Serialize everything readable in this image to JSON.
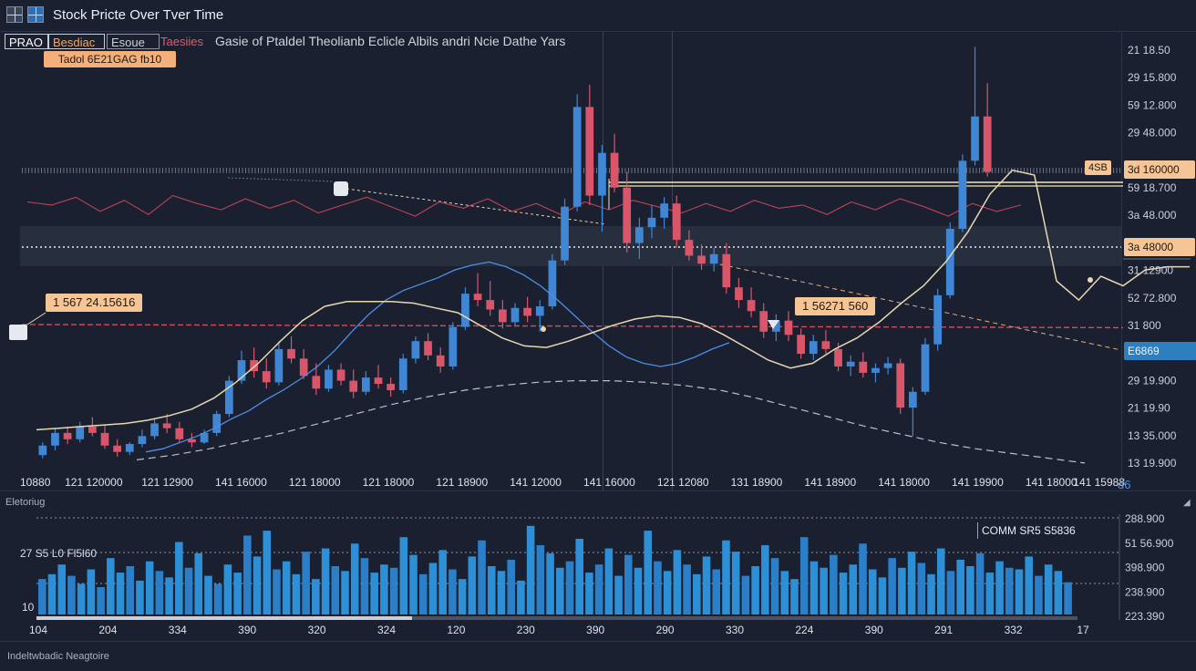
{
  "window": {
    "title": "Stock Pricte Over Tver Time",
    "icons": [
      "chart-grid-icon",
      "layout-icon"
    ]
  },
  "tabs": [
    {
      "label": "PRAO"
    },
    {
      "label": "Besdiac"
    },
    {
      "label": "Esoue"
    },
    {
      "label": "Taesiies"
    }
  ],
  "subtitle": "Gasie of Ptaldel Theolianb Eclicle Albils andri Ncie Dathe Yars",
  "price_badge": "Tadol 6E21GAG fb10",
  "annotations": {
    "left": "1 567 24.15616",
    "mid": "1 56271 560",
    "marker_left": "☐",
    "marker_mid": "②"
  },
  "price_tags": {
    "upper_left": "4SB",
    "upper": "3d 160000",
    "middle": "3a 48000",
    "current": "E6869",
    "bottom_right": "d6"
  },
  "colors": {
    "background": "#1a2030",
    "up_candle": "#3f86d4",
    "down_candle": "#d9566a",
    "ma_light": "#e8d8b0",
    "ma_blue": "#4d8fe8",
    "red_line": "#d84a5a",
    "volume": "#2d8fd6",
    "tag_orange": "#f6c596",
    "tag_blue": "#2d7fc0"
  },
  "volume_panel": {
    "caption": "Eletoriug",
    "label_top": "27  S5 L0 Fl5l60",
    "label_bottom": "10",
    "box_label": "COMM SR5 S5836",
    "x_ticks": [
      "104",
      "204",
      "334",
      "390",
      "320",
      "324",
      "120",
      "230",
      "390",
      "290",
      "330",
      "224",
      "390",
      "291",
      "332",
      "17"
    ],
    "y_ticks": [
      "288.900",
      "51 56.900",
      "398.900",
      "238.900",
      "223.390"
    ]
  },
  "footer": {
    "text": "Indeltwbadic Neagtoire"
  },
  "chart_data": {
    "type": "candlestick",
    "title": "Stock Pricte Over Tver Time",
    "x_tick_labels": [
      "10880",
      "121 120000",
      "121 12900",
      "141 16000",
      "121 18000",
      "121 18000",
      "121 18900",
      "141 12000",
      "141 16000",
      "121 12080",
      "131 18900",
      "141 18900",
      "141 18000",
      "141 19900",
      "141 18000",
      "141 15988"
    ],
    "y_tick_labels": [
      "21 18.50",
      "29 15.800",
      "59 12.800",
      "29 48.000",
      "3d 160000",
      "59 18.700",
      "3a 48.000",
      "3a 48000",
      "31 12900",
      "52 72.800",
      "31 800",
      "E6869",
      "29 19.900",
      "21 19.90",
      "13 35.000",
      "13 19.900"
    ],
    "y_range": [
      14.0,
      42.0
    ],
    "candles": [
      [
        15.2,
        16.0,
        15.0,
        15.8
      ],
      [
        15.8,
        16.9,
        15.5,
        16.6
      ],
      [
        16.6,
        17.0,
        15.9,
        16.2
      ],
      [
        16.2,
        17.3,
        16.0,
        17.0
      ],
      [
        17.0,
        17.6,
        16.4,
        16.6
      ],
      [
        16.6,
        17.1,
        15.6,
        15.8
      ],
      [
        15.8,
        16.2,
        15.1,
        15.4
      ],
      [
        15.4,
        16.0,
        15.2,
        15.9
      ],
      [
        15.9,
        16.8,
        15.7,
        16.4
      ],
      [
        16.4,
        17.5,
        16.2,
        17.2
      ],
      [
        17.2,
        17.8,
        16.6,
        16.9
      ],
      [
        16.9,
        17.3,
        16.0,
        16.2
      ],
      [
        16.2,
        16.6,
        15.7,
        16.0
      ],
      [
        16.0,
        16.8,
        15.9,
        16.6
      ],
      [
        16.6,
        18.0,
        16.4,
        17.8
      ],
      [
        17.8,
        20.2,
        17.6,
        19.9
      ],
      [
        19.9,
        21.8,
        19.7,
        21.2
      ],
      [
        21.2,
        22.0,
        20.1,
        20.5
      ],
      [
        20.5,
        21.3,
        19.4,
        19.8
      ],
      [
        19.8,
        22.4,
        19.6,
        21.9
      ],
      [
        21.9,
        22.7,
        21.0,
        21.3
      ],
      [
        21.3,
        21.9,
        20.0,
        20.2
      ],
      [
        20.2,
        21.0,
        19.0,
        19.4
      ],
      [
        19.4,
        20.9,
        19.2,
        20.6
      ],
      [
        20.6,
        21.0,
        19.6,
        19.9
      ],
      [
        19.9,
        20.6,
        18.8,
        19.2
      ],
      [
        19.2,
        20.5,
        19.0,
        20.1
      ],
      [
        20.1,
        20.9,
        19.4,
        19.7
      ],
      [
        19.7,
        20.1,
        18.9,
        19.3
      ],
      [
        19.3,
        21.6,
        19.1,
        21.3
      ],
      [
        21.3,
        22.7,
        21.0,
        22.4
      ],
      [
        22.4,
        22.9,
        21.2,
        21.5
      ],
      [
        21.5,
        22.0,
        20.4,
        20.8
      ],
      [
        20.8,
        23.6,
        20.6,
        23.3
      ],
      [
        23.3,
        25.8,
        23.1,
        25.4
      ],
      [
        25.4,
        26.7,
        24.6,
        25.0
      ],
      [
        25.0,
        26.2,
        24.0,
        24.4
      ],
      [
        24.4,
        25.0,
        23.2,
        23.6
      ],
      [
        23.6,
        24.8,
        23.4,
        24.5
      ],
      [
        24.5,
        25.2,
        23.6,
        24.0
      ],
      [
        24.0,
        25.0,
        23.0,
        24.6
      ],
      [
        24.6,
        27.9,
        24.4,
        27.5
      ],
      [
        27.5,
        31.4,
        27.2,
        30.9
      ],
      [
        30.9,
        38.0,
        30.6,
        37.2
      ],
      [
        37.2,
        38.6,
        31.0,
        31.6
      ],
      [
        31.6,
        34.8,
        29.3,
        34.3
      ],
      [
        34.3,
        35.5,
        31.8,
        32.1
      ],
      [
        32.1,
        33.1,
        28.0,
        28.6
      ],
      [
        28.6,
        30.2,
        27.6,
        29.6
      ],
      [
        29.6,
        31.0,
        28.9,
        30.2
      ],
      [
        30.2,
        31.5,
        29.5,
        31.1
      ],
      [
        31.1,
        31.6,
        28.3,
        28.8
      ],
      [
        28.8,
        29.4,
        27.5,
        27.8
      ],
      [
        27.8,
        28.5,
        26.9,
        27.3
      ],
      [
        27.3,
        28.3,
        26.8,
        27.9
      ],
      [
        27.9,
        28.6,
        25.4,
        25.8
      ],
      [
        25.8,
        26.4,
        24.5,
        25.0
      ],
      [
        25.0,
        25.8,
        23.9,
        24.3
      ],
      [
        24.3,
        24.8,
        22.6,
        23.0
      ],
      [
        23.0,
        24.1,
        22.4,
        23.7
      ],
      [
        23.7,
        24.3,
        22.4,
        22.8
      ],
      [
        22.8,
        23.2,
        21.3,
        21.6
      ],
      [
        21.6,
        22.8,
        21.2,
        22.4
      ],
      [
        22.4,
        23.1,
        21.6,
        21.9
      ],
      [
        21.9,
        22.3,
        20.5,
        20.8
      ],
      [
        20.8,
        21.5,
        20.2,
        21.1
      ],
      [
        21.1,
        21.7,
        20.1,
        20.4
      ],
      [
        20.4,
        21.0,
        19.8,
        20.7
      ],
      [
        20.7,
        21.4,
        20.3,
        21.0
      ],
      [
        21.0,
        21.3,
        17.8,
        18.2
      ],
      [
        18.2,
        19.5,
        16.4,
        19.2
      ],
      [
        19.2,
        22.6,
        19.0,
        22.2
      ],
      [
        22.2,
        25.7,
        21.8,
        25.3
      ],
      [
        25.3,
        29.9,
        25.1,
        29.5
      ],
      [
        29.5,
        34.2,
        29.3,
        33.8
      ],
      [
        33.8,
        41.0,
        33.5,
        36.6
      ],
      [
        36.6,
        38.7,
        32.8,
        33.1
      ]
    ],
    "moving_average_light": [
      16.8,
      16.9,
      17.0,
      17.1,
      17.2,
      17.4,
      17.7,
      18.1,
      18.8,
      19.8,
      21.0,
      22.4,
      23.7,
      24.6,
      24.9,
      24.9,
      24.9,
      24.8,
      24.5,
      24.2,
      23.4,
      22.6,
      22.1,
      22.0,
      22.4,
      22.9,
      23.4,
      23.8,
      24.0,
      23.9,
      23.5,
      22.8,
      22.0,
      21.2,
      20.7,
      21.0,
      21.9,
      22.6,
      23.6,
      24.8,
      25.9,
      27.4,
      29.3,
      31.7,
      33.2,
      32.9,
      26.2,
      25.0,
      26.5,
      25.9,
      26.9,
      27.1,
      27.1
    ],
    "moving_average_blue": [
      15.4,
      15.6,
      16.0,
      16.4,
      16.9,
      17.5,
      18.0,
      18.7,
      19.3,
      20.0,
      20.8,
      21.8,
      23.0,
      24.1,
      25.0,
      25.6,
      26.0,
      26.4,
      26.9,
      27.2,
      27.4,
      27.1,
      26.6,
      25.9,
      25.0,
      24.0,
      23.0,
      22.1,
      21.4,
      21.0,
      20.8,
      21.0,
      21.4,
      21.9,
      22.3
    ],
    "moving_average_dashed": [
      14.9,
      15.2,
      15.6,
      16.1,
      16.6,
      17.2,
      17.8,
      18.4,
      18.9,
      19.3,
      19.6,
      19.8,
      19.9,
      19.9,
      19.8,
      19.6,
      19.3,
      18.8,
      18.2,
      17.6,
      17.0,
      16.5,
      16.0,
      15.6,
      15.3,
      15.0,
      14.7
    ],
    "reference_line_red": {
      "start": 22.3,
      "end": 22.1
    },
    "oscillator_line": [
      31.2,
      31.0,
      31.5,
      30.6,
      31.3,
      30.4,
      31.6,
      31.1,
      30.7,
      31.4,
      30.8,
      31.3,
      30.5,
      31.0,
      31.5,
      30.9,
      30.3,
      31.2,
      30.8,
      31.4,
      30.6,
      31.1,
      30.4,
      31.2,
      30.7,
      31.3,
      30.9,
      30.5,
      31.1,
      30.6,
      31.3,
      30.8,
      31.0,
      30.4,
      31.2,
      30.7,
      31.4,
      30.9,
      30.3,
      31.1,
      30.6,
      31.0
    ],
    "volume": [
      22,
      25,
      31,
      24,
      19,
      28,
      17,
      35,
      26,
      30,
      21,
      33,
      27,
      23,
      45,
      29,
      38,
      24,
      19,
      31,
      26,
      49,
      36,
      52,
      28,
      33,
      25,
      39,
      22,
      41,
      30,
      27,
      44,
      35,
      26,
      31,
      29,
      48,
      37,
      25,
      32,
      40,
      28,
      22,
      36,
      46,
      30,
      27,
      34,
      21,
      55,
      43,
      38,
      29,
      33,
      47,
      26,
      31,
      41,
      24,
      37,
      29,
      52,
      33,
      27,
      40,
      31,
      25,
      36,
      28,
      46,
      39,
      24,
      30,
      43,
      35,
      27,
      22,
      48,
      33,
      29,
      37,
      26,
      31,
      44,
      28,
      23,
      35,
      29,
      39,
      32,
      25,
      41,
      27,
      34,
      30,
      38,
      26,
      33,
      29,
      28,
      36,
      24,
      31,
      27,
      20
    ]
  }
}
